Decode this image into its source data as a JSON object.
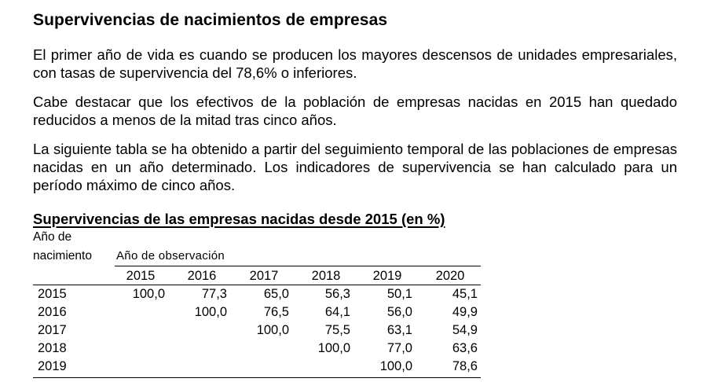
{
  "heading": "Supervivencias de nacimientos de empresas",
  "paragraphs": [
    "El primer año de vida es cuando se producen los mayores descensos de unidades empresariales, con tasas de supervivencia del 78,6% o inferiores.",
    "Cabe destacar que los efectivos de la población de empresas nacidas en 2015 han quedado reducidos a menos de la mitad tras cinco años.",
    "La siguiente tabla se ha obtenido a partir del seguimiento temporal de las poblaciones de empresas nacidas en un año determinado. Los indicadores de supervivencia se han calculado para un período máximo de cinco años."
  ],
  "table": {
    "title": "Supervivencias de las empresas nacidas desde 2015 (en %)",
    "row_header_line1": "Año de",
    "row_header_line2": "nacimiento",
    "column_group_label": "Año de observación",
    "columns": [
      "2015",
      "2016",
      "2017",
      "2018",
      "2019",
      "2020"
    ],
    "rows": [
      {
        "year": "2015",
        "values": [
          "100,0",
          "77,3",
          "65,0",
          "56,3",
          "50,1",
          "45,1"
        ]
      },
      {
        "year": "2016",
        "values": [
          "",
          "100,0",
          "76,5",
          "64,1",
          "56,0",
          "49,9"
        ]
      },
      {
        "year": "2017",
        "values": [
          "",
          "",
          "100,0",
          "75,5",
          "63,1",
          "54,9"
        ]
      },
      {
        "year": "2018",
        "values": [
          "",
          "",
          "",
          "100,0",
          "77,0",
          "63,6"
        ]
      },
      {
        "year": "2019",
        "values": [
          "",
          "",
          "",
          "",
          "100,0",
          "78,6"
        ]
      }
    ]
  }
}
